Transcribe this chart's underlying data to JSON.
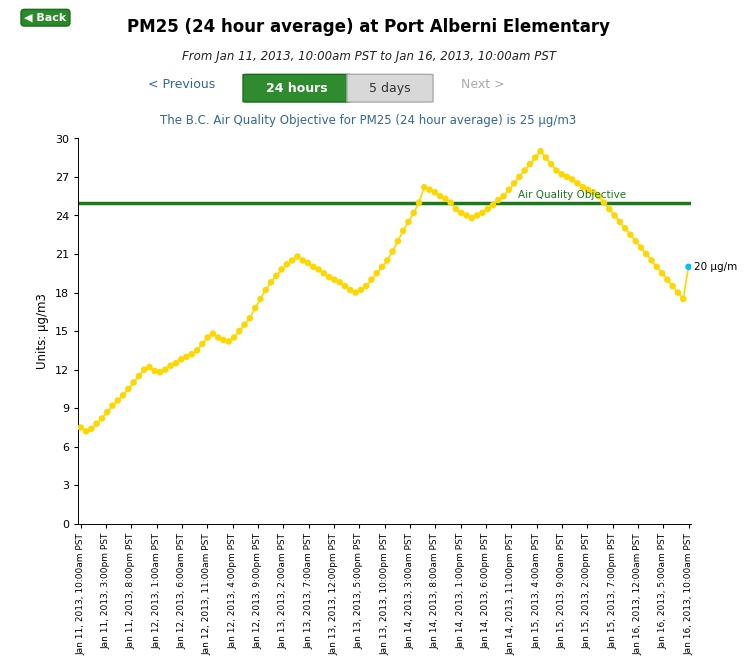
{
  "title": "PM25 (24 hour average) at Port Alberni Elementary",
  "subtitle": "From Jan 11, 2013, 10:00am PST to Jan 16, 2013, 10:00am PST",
  "air_quality_text": "The B.C. Air Quality Objective for PM25 (24 hour average) is 25 μg/m3",
  "ylabel": "Units: μg/m3",
  "air_quality_objective": 25,
  "air_quality_label": "Air Quality Objective",
  "last_point_label": "20 μg/m",
  "ylim": [
    0,
    30
  ],
  "yticks": [
    0,
    3,
    6,
    9,
    12,
    15,
    18,
    21,
    24,
    27,
    30
  ],
  "line_color": "#FFD700",
  "marker_color": "#FFD700",
  "objective_line_color": "#1a7a1a",
  "last_marker_color": "#00BFFF",
  "background_color": "#ffffff",
  "xtick_labels": [
    "Jan 11, 2013, 10:00am PST",
    "Jan 11, 2013, 3:00pm PST",
    "Jan 11, 2013, 8:00pm PST",
    "Jan 12, 2013, 1:00am PST",
    "Jan 12, 2013, 6:00am PST",
    "Jan 12, 2013, 11:00am PST",
    "Jan 12, 2013, 4:00pm PST",
    "Jan 12, 2013, 9:00pm PST",
    "Jan 13, 2013, 2:00am PST",
    "Jan 13, 2013, 7:00am PST",
    "Jan 13, 2013, 12:00pm PST",
    "Jan 13, 2013, 5:00pm PST",
    "Jan 13, 2013, 10:00pm PST",
    "Jan 14, 2013, 3:00am PST",
    "Jan 14, 2013, 8:00am PST",
    "Jan 14, 2013, 1:00pm PST",
    "Jan 14, 2013, 6:00pm PST",
    "Jan 14, 2013, 11:00pm PST",
    "Jan 15, 2013, 4:00am PST",
    "Jan 15, 2013, 9:00am PST",
    "Jan 15, 2013, 2:00pm PST",
    "Jan 15, 2013, 7:00pm PST",
    "Jan 16, 2013, 12:00am PST",
    "Jan 16, 2013, 5:00am PST",
    "Jan 16, 2013, 10:00am PST"
  ],
  "y_values": [
    7.5,
    7.2,
    7.4,
    7.8,
    8.2,
    8.7,
    9.2,
    9.6,
    10.0,
    10.5,
    11.0,
    11.5,
    12.0,
    12.2,
    11.9,
    11.8,
    12.0,
    12.3,
    12.5,
    12.8,
    13.0,
    13.2,
    13.5,
    14.0,
    14.5,
    14.8,
    14.5,
    14.3,
    14.2,
    14.5,
    15.0,
    15.5,
    16.0,
    16.8,
    17.5,
    18.2,
    18.8,
    19.3,
    19.8,
    20.2,
    20.5,
    20.8,
    20.5,
    20.3,
    20.0,
    19.8,
    19.5,
    19.2,
    19.0,
    18.8,
    18.5,
    18.2,
    18.0,
    18.2,
    18.5,
    19.0,
    19.5,
    20.0,
    20.5,
    21.2,
    22.0,
    22.8,
    23.5,
    24.2,
    25.0,
    26.2,
    26.0,
    25.8,
    25.5,
    25.3,
    25.0,
    24.5,
    24.2,
    24.0,
    23.8,
    24.0,
    24.2,
    24.5,
    24.8,
    25.2,
    25.5,
    26.0,
    26.5,
    27.0,
    27.5,
    28.0,
    28.5,
    29.0,
    28.5,
    28.0,
    27.5,
    27.2,
    27.0,
    26.8,
    26.5,
    26.2,
    26.0,
    25.8,
    25.5,
    25.0,
    24.5,
    24.0,
    23.5,
    23.0,
    22.5,
    22.0,
    21.5,
    21.0,
    20.5,
    20.0,
    19.5,
    19.0,
    18.5,
    18.0,
    17.5,
    20.0
  ]
}
